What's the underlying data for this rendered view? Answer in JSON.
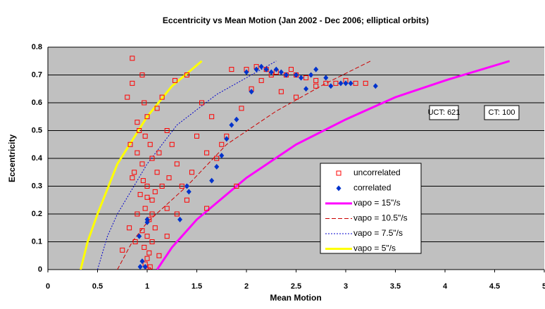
{
  "chart_data": {
    "type": "scatter",
    "title": "Eccentricity vs Mean Motion (Jan 2002 - Dec 2006; elliptical orbits)",
    "x_label": "Mean Motion",
    "y_label": "Eccentricity",
    "xlim": [
      0,
      5
    ],
    "ylim": [
      0,
      0.8
    ],
    "xticks": [
      0,
      0.5,
      1,
      1.5,
      2,
      2.5,
      3,
      3.5,
      4,
      4.5,
      5
    ],
    "yticks": [
      0,
      0.1,
      0.2,
      0.3,
      0.4,
      0.5,
      0.6,
      0.7,
      0.8
    ],
    "grid": true,
    "background": "#c0c0c0",
    "annotations": [
      "UCT: 621",
      "CT: 100"
    ],
    "series": [
      {
        "name": "uncorrelated",
        "kind": "scatter",
        "marker": "square",
        "color": "#ff0000",
        "x": [
          0.85,
          0.8,
          0.85,
          0.95,
          0.97,
          1.0,
          0.92,
          0.98,
          1.03,
          0.9,
          1.05,
          0.95,
          1.1,
          0.85,
          1.0,
          1.15,
          0.93,
          1.05,
          0.98,
          1.2,
          0.9,
          1.02,
          1.08,
          0.95,
          1.0,
          1.05,
          0.97,
          1.02,
          1.0,
          0.98,
          1.03,
          1.01,
          0.75,
          0.82,
          0.88,
          1.12,
          1.25,
          1.3,
          1.2,
          1.35,
          1.4,
          1.28,
          1.4,
          1.15,
          1.1,
          1.5,
          1.6,
          1.45,
          1.3,
          1.2,
          1.55,
          1.7,
          1.8,
          1.75,
          1.65,
          1.9,
          1.6,
          1.85,
          2.0,
          2.1,
          2.2,
          2.3,
          2.4,
          2.5,
          2.6,
          2.7,
          2.8,
          2.9,
          3.0,
          3.1,
          3.2,
          2.35,
          2.5,
          2.7,
          2.15,
          2.25,
          2.45,
          2.05,
          1.95,
          0.87,
          0.83,
          0.9,
          1.08,
          1.12,
          1.22,
          0.96,
          1.0,
          1.05
        ],
        "values": [
          0.76,
          0.62,
          0.67,
          0.7,
          0.6,
          0.55,
          0.5,
          0.48,
          0.45,
          0.42,
          0.4,
          0.38,
          0.35,
          0.33,
          0.3,
          0.3,
          0.27,
          0.25,
          0.22,
          0.22,
          0.2,
          0.18,
          0.15,
          0.14,
          0.12,
          0.1,
          0.08,
          0.06,
          0.04,
          0.02,
          0.01,
          0.0,
          0.07,
          0.15,
          0.1,
          0.05,
          0.45,
          0.38,
          0.5,
          0.3,
          0.25,
          0.68,
          0.7,
          0.62,
          0.58,
          0.48,
          0.42,
          0.35,
          0.2,
          0.12,
          0.6,
          0.4,
          0.48,
          0.45,
          0.55,
          0.3,
          0.22,
          0.72,
          0.72,
          0.73,
          0.72,
          0.71,
          0.7,
          0.7,
          0.69,
          0.68,
          0.67,
          0.67,
          0.68,
          0.67,
          0.67,
          0.64,
          0.62,
          0.66,
          0.68,
          0.7,
          0.72,
          0.65,
          0.58,
          0.35,
          0.45,
          0.53,
          0.28,
          0.42,
          0.33,
          0.32,
          0.26,
          0.2
        ]
      },
      {
        "name": "correlated",
        "kind": "scatter",
        "marker": "diamond",
        "color": "#0033cc",
        "x": [
          2.0,
          2.1,
          2.15,
          2.2,
          2.25,
          2.3,
          2.35,
          2.4,
          2.5,
          2.55,
          2.65,
          2.7,
          2.8,
          2.85,
          2.95,
          3.0,
          3.05,
          3.3,
          2.05,
          2.6,
          1.85,
          1.9,
          1.8,
          1.75,
          1.7,
          1.65,
          1.4,
          1.42,
          1.33,
          1.0,
          0.95,
          0.98,
          1.0,
          0.92,
          0.93
        ],
        "values": [
          0.71,
          0.72,
          0.73,
          0.72,
          0.71,
          0.72,
          0.71,
          0.7,
          0.7,
          0.69,
          0.7,
          0.72,
          0.69,
          0.66,
          0.67,
          0.67,
          0.67,
          0.66,
          0.64,
          0.65,
          0.52,
          0.54,
          0.47,
          0.41,
          0.37,
          0.32,
          0.3,
          0.28,
          0.18,
          0.18,
          0.03,
          0.01,
          0.17,
          0.12,
          0.01
        ]
      },
      {
        "name": "vapo = 15\"/s",
        "kind": "line",
        "dash": "",
        "width": 3,
        "color": "#ff00ff",
        "x": [
          1.1,
          1.25,
          1.5,
          2.0,
          2.5,
          3.0,
          3.5,
          4.0,
          4.65
        ],
        "values": [
          0,
          0.08,
          0.18,
          0.33,
          0.45,
          0.54,
          0.62,
          0.68,
          0.75
        ]
      },
      {
        "name": "vapo = 10.5\"/s",
        "kind": "line",
        "dash": "6 3",
        "width": 1,
        "color": "#cc0000",
        "x": [
          0.7,
          0.85,
          1.0,
          1.4,
          1.8,
          2.3,
          2.8,
          3.25
        ],
        "values": [
          0,
          0.1,
          0.17,
          0.3,
          0.45,
          0.57,
          0.67,
          0.75
        ]
      },
      {
        "name": "vapo = 7.5\"/s",
        "kind": "line",
        "dash": "2 2",
        "width": 1,
        "color": "#0000cc",
        "x": [
          0.5,
          0.6,
          0.7,
          1.0,
          1.3,
          1.7,
          2.3
        ],
        "values": [
          0,
          0.12,
          0.2,
          0.38,
          0.52,
          0.63,
          0.75
        ]
      },
      {
        "name": "vapo = 5\"/s",
        "kind": "line",
        "dash": "",
        "width": 3,
        "color": "#ffff00",
        "x": [
          0.33,
          0.4,
          0.5,
          0.7,
          1.0,
          1.25,
          1.55
        ],
        "values": [
          0,
          0.1,
          0.2,
          0.38,
          0.55,
          0.66,
          0.75
        ]
      }
    ]
  }
}
